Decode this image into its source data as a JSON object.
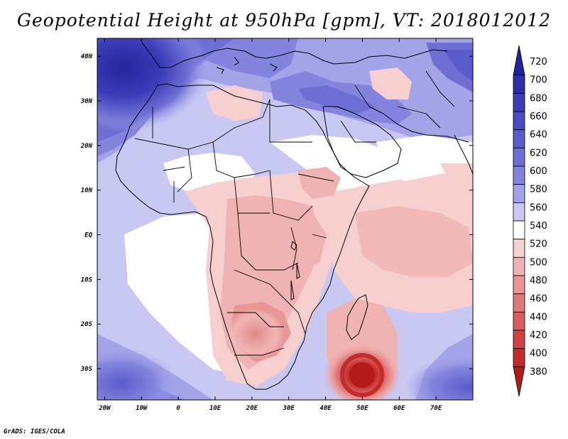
{
  "title": "Geopotential Height at 950hPa [gpm], VT: 2018012012",
  "credit": "GrADS: IGES/COLA",
  "lat_labels": [
    "40N",
    "30N",
    "20N",
    "10N",
    "EQ",
    "10S",
    "20S",
    "30S"
  ],
  "lon_labels": [
    "20W",
    "10W",
    "0",
    "10E",
    "20E",
    "30E",
    "40E",
    "50E",
    "60E",
    "70E"
  ],
  "lat_values": [
    40,
    30,
    20,
    10,
    0,
    -10,
    -20,
    -30
  ],
  "lon_values": [
    -20,
    -10,
    0,
    10,
    20,
    30,
    40,
    50,
    60,
    70
  ],
  "map_extent": {
    "lon_min": -22,
    "lon_max": 80,
    "lat_min": -37,
    "lat_max": 44
  },
  "colorbar": {
    "levels": [
      "720",
      "700",
      "680",
      "660",
      "640",
      "620",
      "600",
      "580",
      "560",
      "540",
      "520",
      "500",
      "480",
      "460",
      "440",
      "420",
      "400",
      "380"
    ],
    "colors": [
      "#22229a",
      "#2e2eaa",
      "#3c3cb8",
      "#4a4ac2",
      "#5b5bcb",
      "#6e6ed4",
      "#8484de",
      "#a3a3e8",
      "#c8c8f2",
      "#ffffff",
      "#f7cfcf",
      "#f0b3b3",
      "#e89696",
      "#e07a7a",
      "#d85e5e",
      "#cf4343",
      "#c42c2c",
      "#b31b1b"
    ]
  }
}
